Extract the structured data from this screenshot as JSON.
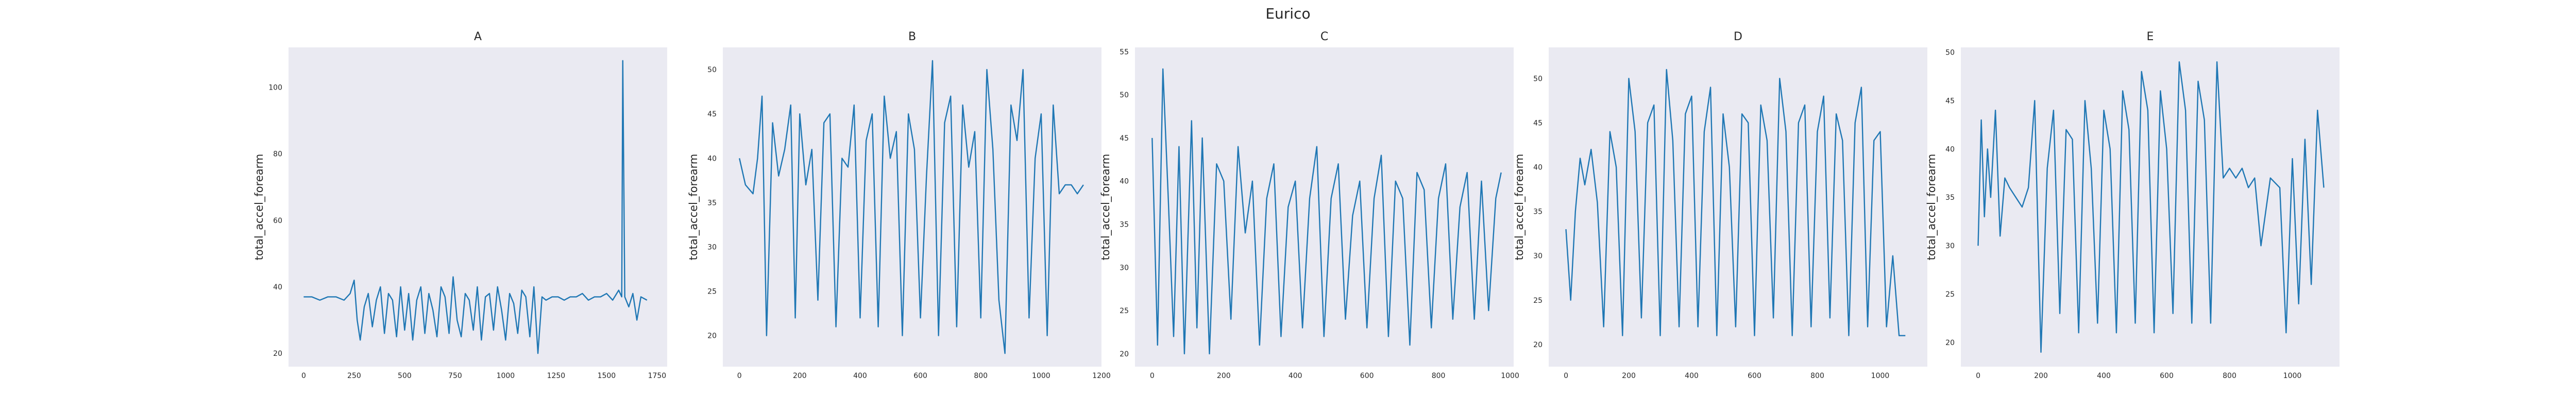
{
  "figure": {
    "suptitle": "Eurico"
  },
  "colors": {
    "series": "#1f77b4",
    "plot_background": "#eaeaf2"
  },
  "chart_data": [
    {
      "type": "line",
      "title": "A",
      "xlabel": "",
      "ylabel": "total_accel_forearm",
      "xlim": [
        -75,
        1800
      ],
      "ylim": [
        16,
        112
      ],
      "xticks": [
        0,
        250,
        500,
        750,
        1000,
        1250,
        1500,
        1750
      ],
      "yticks": [
        20,
        40,
        60,
        80,
        100
      ],
      "grid": false,
      "x": [
        0,
        40,
        80,
        120,
        160,
        200,
        230,
        250,
        265,
        280,
        300,
        320,
        340,
        360,
        380,
        400,
        420,
        440,
        460,
        480,
        500,
        520,
        540,
        560,
        580,
        600,
        620,
        640,
        660,
        680,
        700,
        720,
        740,
        760,
        780,
        800,
        820,
        840,
        860,
        880,
        900,
        920,
        940,
        960,
        980,
        1000,
        1020,
        1040,
        1060,
        1080,
        1100,
        1120,
        1140,
        1160,
        1180,
        1200,
        1230,
        1260,
        1290,
        1320,
        1350,
        1380,
        1410,
        1440,
        1470,
        1500,
        1530,
        1560,
        1575,
        1580,
        1590,
        1610,
        1630,
        1650,
        1670,
        1700
      ],
      "y": [
        37,
        37,
        36,
        37,
        37,
        36,
        38,
        42,
        30,
        24,
        34,
        38,
        28,
        36,
        40,
        26,
        38,
        36,
        25,
        40,
        27,
        38,
        24,
        36,
        40,
        26,
        38,
        33,
        25,
        40,
        37,
        26,
        43,
        30,
        25,
        38,
        36,
        27,
        40,
        24,
        37,
        38,
        27,
        40,
        33,
        24,
        38,
        35,
        26,
        39,
        37,
        25,
        40,
        20,
        37,
        36,
        37,
        37,
        36,
        37,
        37,
        38,
        36,
        37,
        37,
        38,
        36,
        39,
        37,
        108,
        37,
        34,
        38,
        30,
        37,
        36
      ]
    },
    {
      "type": "line",
      "title": "B",
      "xlabel": "",
      "ylabel": "total_accel_forearm",
      "xlim": [
        -55,
        1200
      ],
      "ylim": [
        16.5,
        52.5
      ],
      "xticks": [
        0,
        200,
        400,
        600,
        800,
        1000,
        1200
      ],
      "yticks": [
        20,
        25,
        30,
        35,
        40,
        45,
        50
      ],
      "grid": false,
      "x": [
        0,
        20,
        45,
        60,
        75,
        90,
        110,
        130,
        150,
        170,
        185,
        200,
        220,
        240,
        260,
        280,
        300,
        320,
        340,
        360,
        380,
        400,
        420,
        440,
        460,
        480,
        500,
        520,
        540,
        560,
        580,
        600,
        620,
        640,
        660,
        680,
        700,
        720,
        740,
        760,
        780,
        800,
        820,
        840,
        860,
        880,
        900,
        920,
        940,
        960,
        980,
        1000,
        1020,
        1040,
        1060,
        1080,
        1100,
        1120,
        1140
      ],
      "y": [
        40,
        37,
        36,
        40,
        47,
        20,
        44,
        38,
        41,
        46,
        22,
        45,
        37,
        41,
        24,
        44,
        45,
        21,
        40,
        39,
        46,
        22,
        42,
        45,
        21,
        47,
        40,
        43,
        20,
        45,
        41,
        22,
        38,
        51,
        20,
        44,
        47,
        21,
        46,
        39,
        43,
        22,
        50,
        41,
        24,
        18,
        46,
        42,
        50,
        22,
        40,
        45,
        20,
        46,
        36,
        37,
        37,
        36,
        37
      ]
    },
    {
      "type": "line",
      "title": "C",
      "xlabel": "",
      "ylabel": "total_accel_forearm",
      "xlim": [
        -48,
        1010
      ],
      "ylim": [
        18.5,
        55.5
      ],
      "xticks": [
        0,
        200,
        400,
        600,
        800,
        1000
      ],
      "yticks": [
        20,
        25,
        30,
        35,
        40,
        45,
        50,
        55
      ],
      "grid": false,
      "x": [
        0,
        15,
        30,
        45,
        60,
        75,
        90,
        110,
        125,
        140,
        160,
        180,
        200,
        220,
        240,
        260,
        280,
        300,
        320,
        340,
        360,
        380,
        400,
        420,
        440,
        460,
        480,
        500,
        520,
        540,
        560,
        580,
        600,
        620,
        640,
        660,
        680,
        700,
        720,
        740,
        760,
        780,
        800,
        820,
        840,
        860,
        880,
        900,
        920,
        940,
        960,
        975
      ],
      "y": [
        45,
        21,
        53,
        38,
        22,
        44,
        20,
        47,
        23,
        45,
        20,
        42,
        40,
        24,
        44,
        34,
        40,
        21,
        38,
        42,
        22,
        37,
        40,
        23,
        38,
        44,
        22,
        38,
        42,
        24,
        36,
        40,
        23,
        38,
        43,
        22,
        40,
        38,
        21,
        41,
        39,
        23,
        38,
        42,
        24,
        37,
        41,
        24,
        40,
        25,
        38,
        41
      ]
    },
    {
      "type": "line",
      "title": "D",
      "xlabel": "",
      "ylabel": "total_accel_forearm",
      "xlim": [
        -55,
        1150
      ],
      "ylim": [
        17.5,
        53.5
      ],
      "xticks": [
        0,
        200,
        400,
        600,
        800,
        1000
      ],
      "yticks": [
        20,
        25,
        30,
        35,
        40,
        45,
        50
      ],
      "grid": false,
      "x": [
        0,
        15,
        30,
        45,
        60,
        80,
        100,
        120,
        140,
        160,
        180,
        200,
        220,
        240,
        260,
        280,
        300,
        320,
        340,
        360,
        380,
        400,
        420,
        440,
        460,
        480,
        500,
        520,
        540,
        560,
        580,
        600,
        620,
        640,
        660,
        680,
        700,
        720,
        740,
        760,
        780,
        800,
        820,
        840,
        860,
        880,
        900,
        920,
        940,
        960,
        980,
        1000,
        1020,
        1040,
        1060,
        1080
      ],
      "y": [
        33,
        25,
        35,
        41,
        38,
        42,
        36,
        22,
        44,
        40,
        21,
        50,
        44,
        23,
        45,
        47,
        21,
        51,
        43,
        22,
        46,
        48,
        22,
        44,
        49,
        21,
        46,
        40,
        22,
        46,
        45,
        21,
        47,
        43,
        23,
        50,
        44,
        21,
        45,
        47,
        22,
        44,
        48,
        23,
        46,
        43,
        21,
        45,
        49,
        22,
        43,
        44,
        22,
        30,
        21,
        21
      ]
    },
    {
      "type": "line",
      "title": "E",
      "xlabel": "",
      "ylabel": "total_accel_forearm",
      "xlim": [
        -55,
        1150
      ],
      "ylim": [
        17.5,
        50.5
      ],
      "xticks": [
        0,
        200,
        400,
        600,
        800,
        1000
      ],
      "yticks": [
        20,
        25,
        30,
        35,
        40,
        45,
        50
      ],
      "grid": false,
      "x": [
        0,
        10,
        20,
        30,
        40,
        55,
        70,
        85,
        100,
        120,
        140,
        160,
        180,
        200,
        220,
        240,
        260,
        280,
        300,
        320,
        340,
        360,
        380,
        400,
        420,
        440,
        460,
        480,
        500,
        520,
        540,
        560,
        580,
        600,
        620,
        640,
        660,
        680,
        700,
        720,
        740,
        760,
        780,
        800,
        820,
        840,
        860,
        880,
        900,
        930,
        960,
        980,
        1000,
        1020,
        1040,
        1060,
        1080,
        1100
      ],
      "y": [
        30,
        43,
        33,
        40,
        35,
        44,
        31,
        37,
        36,
        35,
        34,
        36,
        45,
        19,
        38,
        44,
        23,
        42,
        41,
        21,
        45,
        38,
        22,
        44,
        40,
        21,
        46,
        42,
        22,
        48,
        44,
        21,
        46,
        40,
        23,
        49,
        44,
        22,
        47,
        43,
        22,
        49,
        37,
        38,
        37,
        38,
        36,
        37,
        30,
        37,
        36,
        21,
        39,
        24,
        41,
        26,
        44,
        36
      ]
    }
  ]
}
